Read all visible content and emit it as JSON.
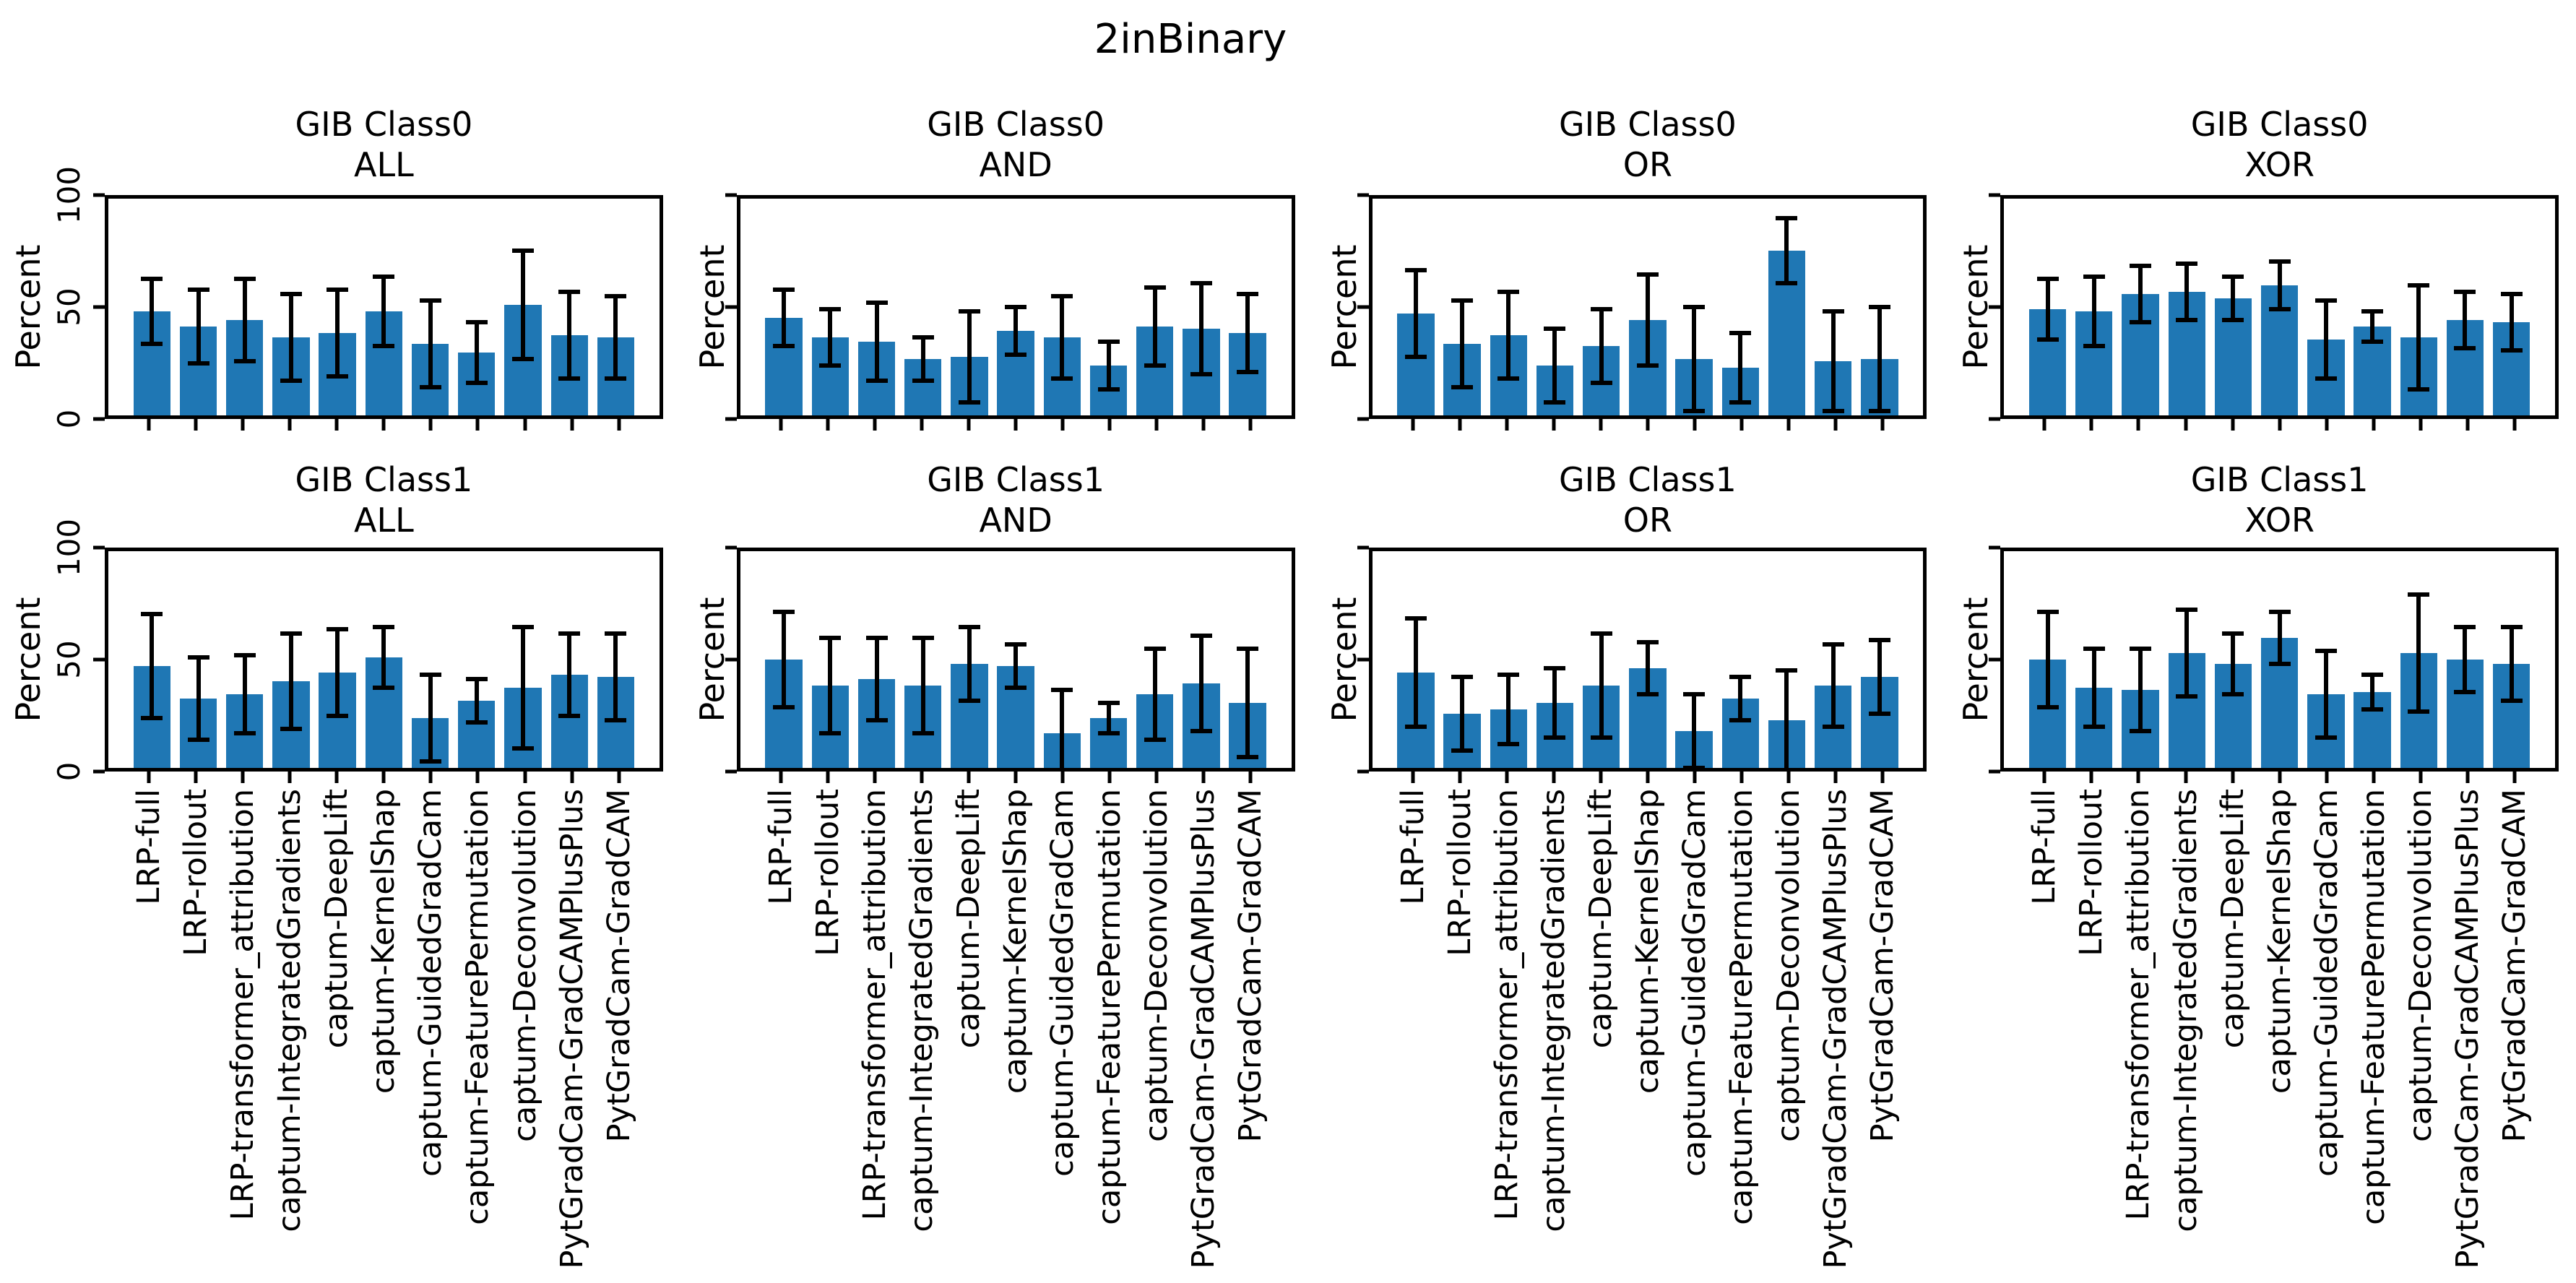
{
  "chart_data": {
    "type": "bar",
    "suptitle": "2inBinary",
    "ylabel": "Percent",
    "ylim": [
      0,
      100
    ],
    "yticks": [
      0,
      50,
      100
    ],
    "bar_color": "#1f77b4",
    "error_bar_color": "#000000",
    "grid_lines": false,
    "layout": "2 rows x 4 columns, shared axes, error bars symmetric",
    "categories": [
      "LRP-full",
      "LRP-rollout",
      "LRP-transformer_attribution",
      "captum-IntegratedGradients",
      "captum-DeepLift",
      "captum-KernelShap",
      "captum-GuidedGradCam",
      "captum-FeaturePermutation",
      "captum-Deconvolution",
      "PytGradCam-GradCAMPlusPlus",
      "PytGradCam-GradCAM"
    ],
    "subplots": [
      {
        "title_line1": "GIB Class0",
        "title_line2": "ALL",
        "values": [
          48,
          41,
          44,
          36,
          38,
          48,
          33,
          29,
          51,
          37,
          36
        ],
        "errors": [
          15,
          17,
          19,
          20,
          20,
          16,
          20,
          14,
          25,
          20,
          19
        ]
      },
      {
        "title_line1": "GIB Class0",
        "title_line2": "AND",
        "values": [
          45,
          36,
          34,
          26,
          27,
          39,
          36,
          23,
          41,
          40,
          38
        ],
        "errors": [
          13,
          13,
          18,
          10,
          21,
          11,
          19,
          11,
          18,
          21,
          18
        ]
      },
      {
        "title_line1": "GIB Class0",
        "title_line2": "OR",
        "values": [
          47,
          33,
          37,
          23,
          32,
          44,
          26,
          22,
          76,
          25,
          26
        ],
        "errors": [
          20,
          20,
          20,
          17,
          17,
          21,
          24,
          16,
          15,
          23,
          24
        ]
      },
      {
        "title_line1": "GIB Class0",
        "title_line2": "XOR",
        "values": [
          49,
          48,
          56,
          57,
          54,
          60,
          35,
          41,
          36,
          44,
          43
        ],
        "errors": [
          14,
          16,
          13,
          13,
          10,
          11,
          18,
          7,
          24,
          13,
          13
        ]
      },
      {
        "title_line1": "GIB Class1",
        "title_line2": "ALL",
        "values": [
          47,
          32,
          34,
          40,
          44,
          51,
          23,
          31,
          37,
          43,
          42
        ],
        "errors": [
          24,
          19,
          18,
          22,
          20,
          14,
          20,
          10,
          28,
          19,
          20
        ]
      },
      {
        "title_line1": "GIB Class1",
        "title_line2": "AND",
        "values": [
          50,
          38,
          41,
          38,
          48,
          47,
          16,
          23,
          34,
          39,
          30
        ],
        "errors": [
          22,
          22,
          19,
          22,
          17,
          10,
          20,
          7,
          21,
          22,
          25
        ]
      },
      {
        "title_line1": "GIB Class1",
        "title_line2": "OR",
        "values": [
          44,
          25,
          27,
          30,
          38,
          46,
          17,
          32,
          22,
          38,
          42
        ],
        "errors": [
          25,
          17,
          16,
          16,
          24,
          12,
          17,
          10,
          23,
          19,
          17
        ]
      },
      {
        "title_line1": "GIB Class1",
        "title_line2": "XOR",
        "values": [
          50,
          37,
          36,
          53,
          48,
          60,
          34,
          35,
          53,
          50,
          48
        ],
        "errors": [
          22,
          18,
          19,
          20,
          14,
          12,
          20,
          8,
          27,
          15,
          17
        ]
      }
    ]
  }
}
